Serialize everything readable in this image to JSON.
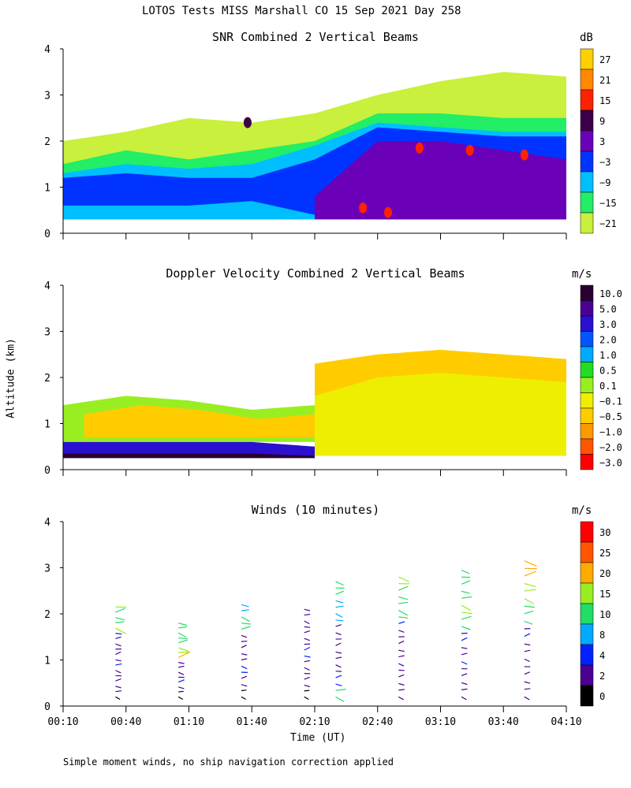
{
  "figure_title": "LOTOS Tests MISS Marshall CO  15 Sep 2021 Day 258",
  "footnote": "Simple moment winds, no ship navigation correction applied",
  "colors": {
    "background": "#ffffff",
    "axes": "#000000"
  },
  "chart_data": [
    {
      "id": "snr",
      "type": "heatmap",
      "title": "SNR Combined 2 Vertical Beams",
      "units": "dB",
      "ylabel": "Altitude (km)",
      "xlabel": "Time (UT)",
      "xlim": [
        "00:10",
        "04:10"
      ],
      "ylim": [
        0,
        4
      ],
      "y_ticks": [
        "0",
        "1",
        "2",
        "3",
        "4"
      ],
      "x_ticks": [
        "00:10",
        "00:40",
        "01:10",
        "01:40",
        "02:10",
        "02:40",
        "03:10",
        "03:40",
        "04:10"
      ],
      "colorbar": {
        "labels": [
          "27",
          "21",
          "15",
          "9",
          "3",
          "−3",
          "−9",
          "−15",
          "−21"
        ],
        "colors": [
          "#ffd000",
          "#ff8800",
          "#ff2200",
          "#3c0048",
          "#6a00b8",
          "#0033ff",
          "#00bfff",
          "#22ee66",
          "#c8f03c"
        ]
      },
      "layers": [
        {
          "level": "-21 dB",
          "from": "00:10",
          "to": "04:10",
          "base_km": [
            0.3,
            0.3,
            0.3,
            0.3,
            0.3,
            0.3,
            0.3,
            0.3,
            0.3
          ],
          "top_km": [
            2.0,
            2.2,
            2.5,
            2.4,
            2.6,
            3.0,
            3.3,
            3.5,
            3.4
          ]
        },
        {
          "level": "-15 dB",
          "from": "00:10",
          "to": "04:10",
          "base_km": [
            0.3,
            0.3,
            0.3,
            0.3,
            0.3,
            0.3,
            0.3,
            0.3,
            0.3
          ],
          "top_km": [
            1.5,
            1.8,
            1.6,
            1.8,
            2.0,
            2.6,
            2.6,
            2.5,
            2.5
          ]
        },
        {
          "level": "-9 dB",
          "from": "00:10",
          "to": "04:10",
          "base_km": [
            0.3,
            0.3,
            0.3,
            0.3,
            0.3,
            0.3,
            0.3,
            0.3,
            0.3
          ],
          "top_km": [
            1.3,
            1.5,
            1.4,
            1.5,
            1.9,
            2.4,
            2.3,
            2.2,
            2.2
          ]
        },
        {
          "level": "-3 dB",
          "from": "00:10",
          "to": "04:10",
          "base_km": [
            0.6,
            0.6,
            0.6,
            0.7,
            0.4,
            0.3,
            0.3,
            0.3,
            0.3
          ],
          "top_km": [
            1.2,
            1.3,
            1.2,
            1.2,
            1.6,
            2.3,
            2.2,
            2.1,
            2.1
          ]
        },
        {
          "level": "3 dB",
          "from": "02:10",
          "to": "04:10",
          "base_km": [
            0.3,
            0.3,
            0.3,
            0.3,
            0.3
          ],
          "top_km": [
            0.8,
            2.0,
            2.0,
            1.8,
            1.6
          ]
        }
      ],
      "annotations": [
        {
          "label": "15 dB",
          "time": "02:33",
          "alt_km": 0.55
        },
        {
          "label": "15 dB",
          "time": "03:00",
          "alt_km": 1.85
        },
        {
          "label": "15 dB",
          "time": "03:24",
          "alt_km": 1.8
        },
        {
          "label": "15 dB",
          "time": "03:50",
          "alt_km": 1.7
        },
        {
          "label": "15 dB",
          "time": "02:45",
          "alt_km": 0.45
        },
        {
          "label": "9 dB",
          "time": "01:38",
          "alt_km": 2.4
        }
      ]
    },
    {
      "id": "doppler",
      "type": "heatmap",
      "title": "Doppler Velocity Combined 2 Vertical Beams",
      "units": "m/s",
      "ylabel": "Altitude (km)",
      "xlabel": "Time (UT)",
      "xlim": [
        "00:10",
        "04:10"
      ],
      "ylim": [
        0,
        4
      ],
      "y_ticks": [
        "0",
        "1",
        "2",
        "3",
        "4"
      ],
      "x_ticks": [
        "00:10",
        "00:40",
        "01:10",
        "01:40",
        "02:10",
        "02:40",
        "03:10",
        "03:40",
        "04:10"
      ],
      "colorbar": {
        "labels": [
          "10.0",
          "5.0",
          "3.0",
          "2.0",
          "1.0",
          "0.5",
          "0.1",
          "−0.1",
          "−0.5",
          "−1.0",
          "−2.0",
          "−3.0"
        ],
        "colors": [
          "#2a0030",
          "#4a0090",
          "#2a10d0",
          "#0055ff",
          "#00aaff",
          "#22dd22",
          "#99ee22",
          "#eeee00",
          "#ffcc00",
          "#ff9900",
          "#ff5500",
          "#ff0000"
        ]
      },
      "layers": [
        {
          "level": "0.1 m/s",
          "from": "00:10",
          "to": "02:10",
          "base_km": [
            0.6,
            0.6,
            0.6,
            0.6,
            0.6
          ],
          "top_km": [
            1.4,
            1.6,
            1.5,
            1.3,
            1.4
          ]
        },
        {
          "level": "-0.5 m/s",
          "from": "00:20",
          "to": "02:10",
          "base_km": [
            0.7,
            0.7,
            0.7,
            0.7,
            0.7
          ],
          "top_km": [
            1.2,
            1.4,
            1.3,
            1.1,
            1.2
          ]
        },
        {
          "level": "-0.5 m/s",
          "from": "02:10",
          "to": "04:10",
          "base_km": [
            0.3,
            0.3,
            0.3,
            0.3,
            0.3
          ],
          "top_km": [
            2.3,
            2.5,
            2.6,
            2.5,
            2.4
          ]
        },
        {
          "level": "-0.1 m/s",
          "from": "02:10",
          "to": "04:10",
          "base_km": [
            0.3,
            0.3,
            0.3,
            0.3,
            0.3
          ],
          "top_km": [
            1.6,
            2.0,
            2.1,
            2.0,
            1.9
          ]
        },
        {
          "level": "3.0 m/s",
          "from": "00:10",
          "to": "02:10",
          "base_km": [
            0.3,
            0.3,
            0.3,
            0.3,
            0.3
          ],
          "top_km": [
            0.6,
            0.6,
            0.6,
            0.6,
            0.5
          ]
        },
        {
          "level": "10.0 m/s",
          "from": "00:10",
          "to": "02:10",
          "base_km": [
            0.25,
            0.25,
            0.25,
            0.25,
            0.25
          ],
          "top_km": [
            0.35,
            0.35,
            0.35,
            0.35,
            0.3
          ]
        }
      ]
    },
    {
      "id": "winds",
      "type": "scatter",
      "title": "Winds (10 minutes)",
      "units": "m/s",
      "ylabel": "Altitude (km)",
      "xlabel": "Time (UT)",
      "xlim": [
        "00:10",
        "04:10"
      ],
      "ylim": [
        0,
        4
      ],
      "y_ticks": [
        "0",
        "1",
        "2",
        "3",
        "4"
      ],
      "x_ticks": [
        "00:10",
        "00:40",
        "01:10",
        "01:40",
        "02:10",
        "02:40",
        "03:10",
        "03:40",
        "04:10"
      ],
      "colorbar": {
        "labels": [
          "30",
          "25",
          "20",
          "15",
          "10",
          "8",
          "4",
          "2",
          "0"
        ],
        "colors": [
          "#ff0000",
          "#ff5500",
          "#ffaa00",
          "#99ee22",
          "#22dd66",
          "#00aaff",
          "#0022ff",
          "#4a0090",
          "#000000"
        ]
      },
      "profiles": [
        {
          "time": "00:35",
          "top_km": 2.15,
          "speeds_ms": [
            1,
            3,
            3,
            3,
            3,
            3,
            4,
            3,
            3,
            3,
            3,
            3,
            4,
            18,
            10,
            12,
            14,
            16
          ]
        },
        {
          "time": "01:05",
          "top_km": 1.8,
          "speeds_ms": [
            1,
            1,
            3,
            4,
            3,
            3,
            3,
            3,
            20,
            18,
            15,
            12,
            12,
            10,
            10,
            10
          ]
        },
        {
          "time": "01:35",
          "top_km": 2.2,
          "speeds_ms": [
            1,
            1,
            3,
            3,
            4,
            4,
            3,
            3,
            3,
            3,
            3,
            12,
            12,
            12,
            8,
            8
          ]
        },
        {
          "time": "02:05",
          "top_km": 2.1,
          "speeds_ms": [
            1,
            1,
            3,
            3,
            3,
            3,
            3,
            4,
            4,
            3,
            3,
            3,
            3,
            3,
            3,
            3
          ]
        },
        {
          "time": "02:20",
          "top_km": 2.7,
          "speeds_ms": [
            12,
            14,
            4,
            4,
            3,
            3,
            3,
            3,
            3,
            3,
            3,
            3,
            8,
            8,
            8,
            8,
            10,
            10,
            10
          ]
        },
        {
          "time": "02:50",
          "top_km": 2.8,
          "speeds_ms": [
            3,
            3,
            3,
            3,
            3,
            3,
            3,
            3,
            3,
            3,
            3,
            4,
            12,
            14,
            12,
            12,
            14,
            16,
            18
          ]
        },
        {
          "time": "03:20",
          "top_km": 2.95,
          "speeds_ms": [
            3,
            3,
            3,
            3,
            3,
            4,
            3,
            3,
            4,
            3,
            12,
            14,
            16,
            15,
            14,
            10,
            12,
            10,
            10
          ]
        },
        {
          "time": "03:50",
          "top_km": 3.15,
          "speeds_ms": [
            3,
            3,
            3,
            3,
            3,
            3,
            3,
            3,
            4,
            3,
            10,
            12,
            14,
            16,
            18,
            18,
            20,
            20,
            22
          ]
        }
      ]
    }
  ]
}
